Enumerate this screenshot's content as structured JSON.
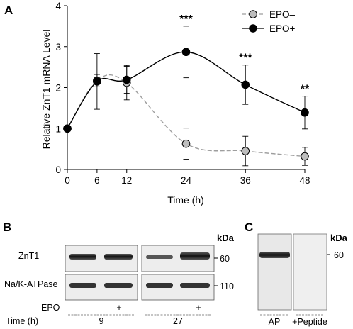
{
  "panels": {
    "a": "A",
    "b": "B",
    "c": "C"
  },
  "chart_data": {
    "type": "line",
    "xlabel": "Time (h)",
    "ylabel": "Relative ZnT1 mRNA Level",
    "x": [
      0,
      6,
      12,
      24,
      36,
      48
    ],
    "xticks": [
      "0",
      "6",
      "12",
      "24",
      "36",
      "48"
    ],
    "yticks": [
      "0",
      "1",
      "2",
      "3",
      "4"
    ],
    "xlim": [
      0,
      48
    ],
    "ylim": [
      0,
      4
    ],
    "legend_position": "top-right",
    "series": [
      {
        "name": "EPO–",
        "values": [
          1.0,
          2.17,
          2.12,
          0.63,
          0.45,
          0.32
        ],
        "errors": [
          0.0,
          0.15,
          0.42,
          0.38,
          0.36,
          0.22
        ],
        "color": "#bdbdbd",
        "line_color": "#9e9e9e",
        "line_style": "dashed",
        "marker": "open-grey-circle"
      },
      {
        "name": "EPO+",
        "values": [
          1.0,
          2.15,
          2.19,
          2.87,
          2.07,
          1.39
        ],
        "errors": [
          0.0,
          0.68,
          0.33,
          0.63,
          0.48,
          0.4
        ],
        "color": "#000000",
        "line_color": "#000000",
        "line_style": "solid",
        "marker": "filled-black-circle"
      }
    ],
    "annotations": [
      {
        "x": 24,
        "text": "***"
      },
      {
        "x": 36,
        "text": "***"
      },
      {
        "x": 48,
        "text": "**"
      }
    ]
  },
  "blot_b": {
    "unit": "kDa",
    "rows": [
      {
        "label": "ZnT1",
        "kda": "60"
      },
      {
        "label": "Na/K-ATPase",
        "kda": "110"
      }
    ],
    "epo_label": "EPO",
    "time_label": "Time (h)",
    "epo_marks": [
      "–",
      "+",
      "–",
      "+"
    ],
    "times": [
      "9",
      "27"
    ]
  },
  "blot_c": {
    "unit": "kDa",
    "kda": "60",
    "lanes": [
      "AP",
      "+Peptide"
    ]
  }
}
